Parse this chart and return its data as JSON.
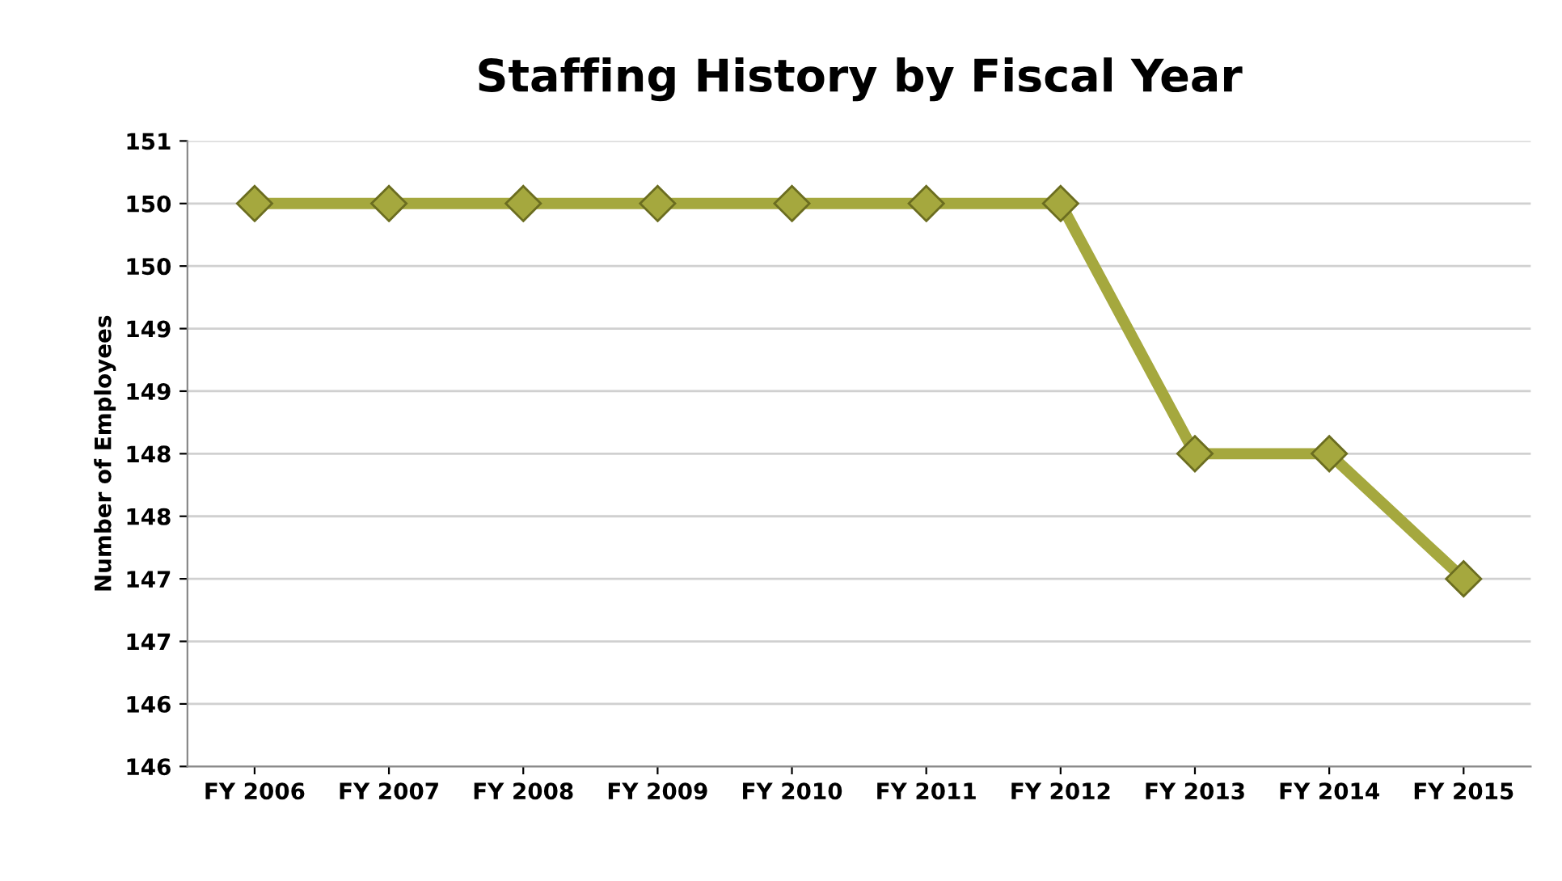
{
  "chart_data": {
    "type": "line",
    "title": "Staffing History by Fiscal Year",
    "ylabel": "Number of Employees",
    "categories": [
      "FY 2006",
      "FY 2007",
      "FY 2008",
      "FY 2009",
      "FY 2010",
      "FY 2011",
      "FY 2012",
      "FY 2013",
      "FY 2014",
      "FY 2015"
    ],
    "series": [
      {
        "color": "#a5a83e",
        "values": [
          150,
          150,
          150,
          150,
          150,
          150,
          150,
          148,
          148,
          147
        ]
      }
    ],
    "ylim": [
      145.5,
      150.5
    ],
    "yticks": [
      {
        "value": 145.5,
        "label": "146"
      },
      {
        "value": 146,
        "label": "146"
      },
      {
        "value": 146.5,
        "label": "147"
      },
      {
        "value": 147,
        "label": "147"
      },
      {
        "value": 147.5,
        "label": "148"
      },
      {
        "value": 148,
        "label": "148"
      },
      {
        "value": 148.5,
        "label": "149"
      },
      {
        "value": 149,
        "label": "149"
      },
      {
        "value": 149.5,
        "label": "150"
      },
      {
        "value": 150,
        "label": "150"
      },
      {
        "value": 150.5,
        "label": "151"
      }
    ],
    "grid": "y",
    "marker": "diamond",
    "line_style": "solid"
  }
}
